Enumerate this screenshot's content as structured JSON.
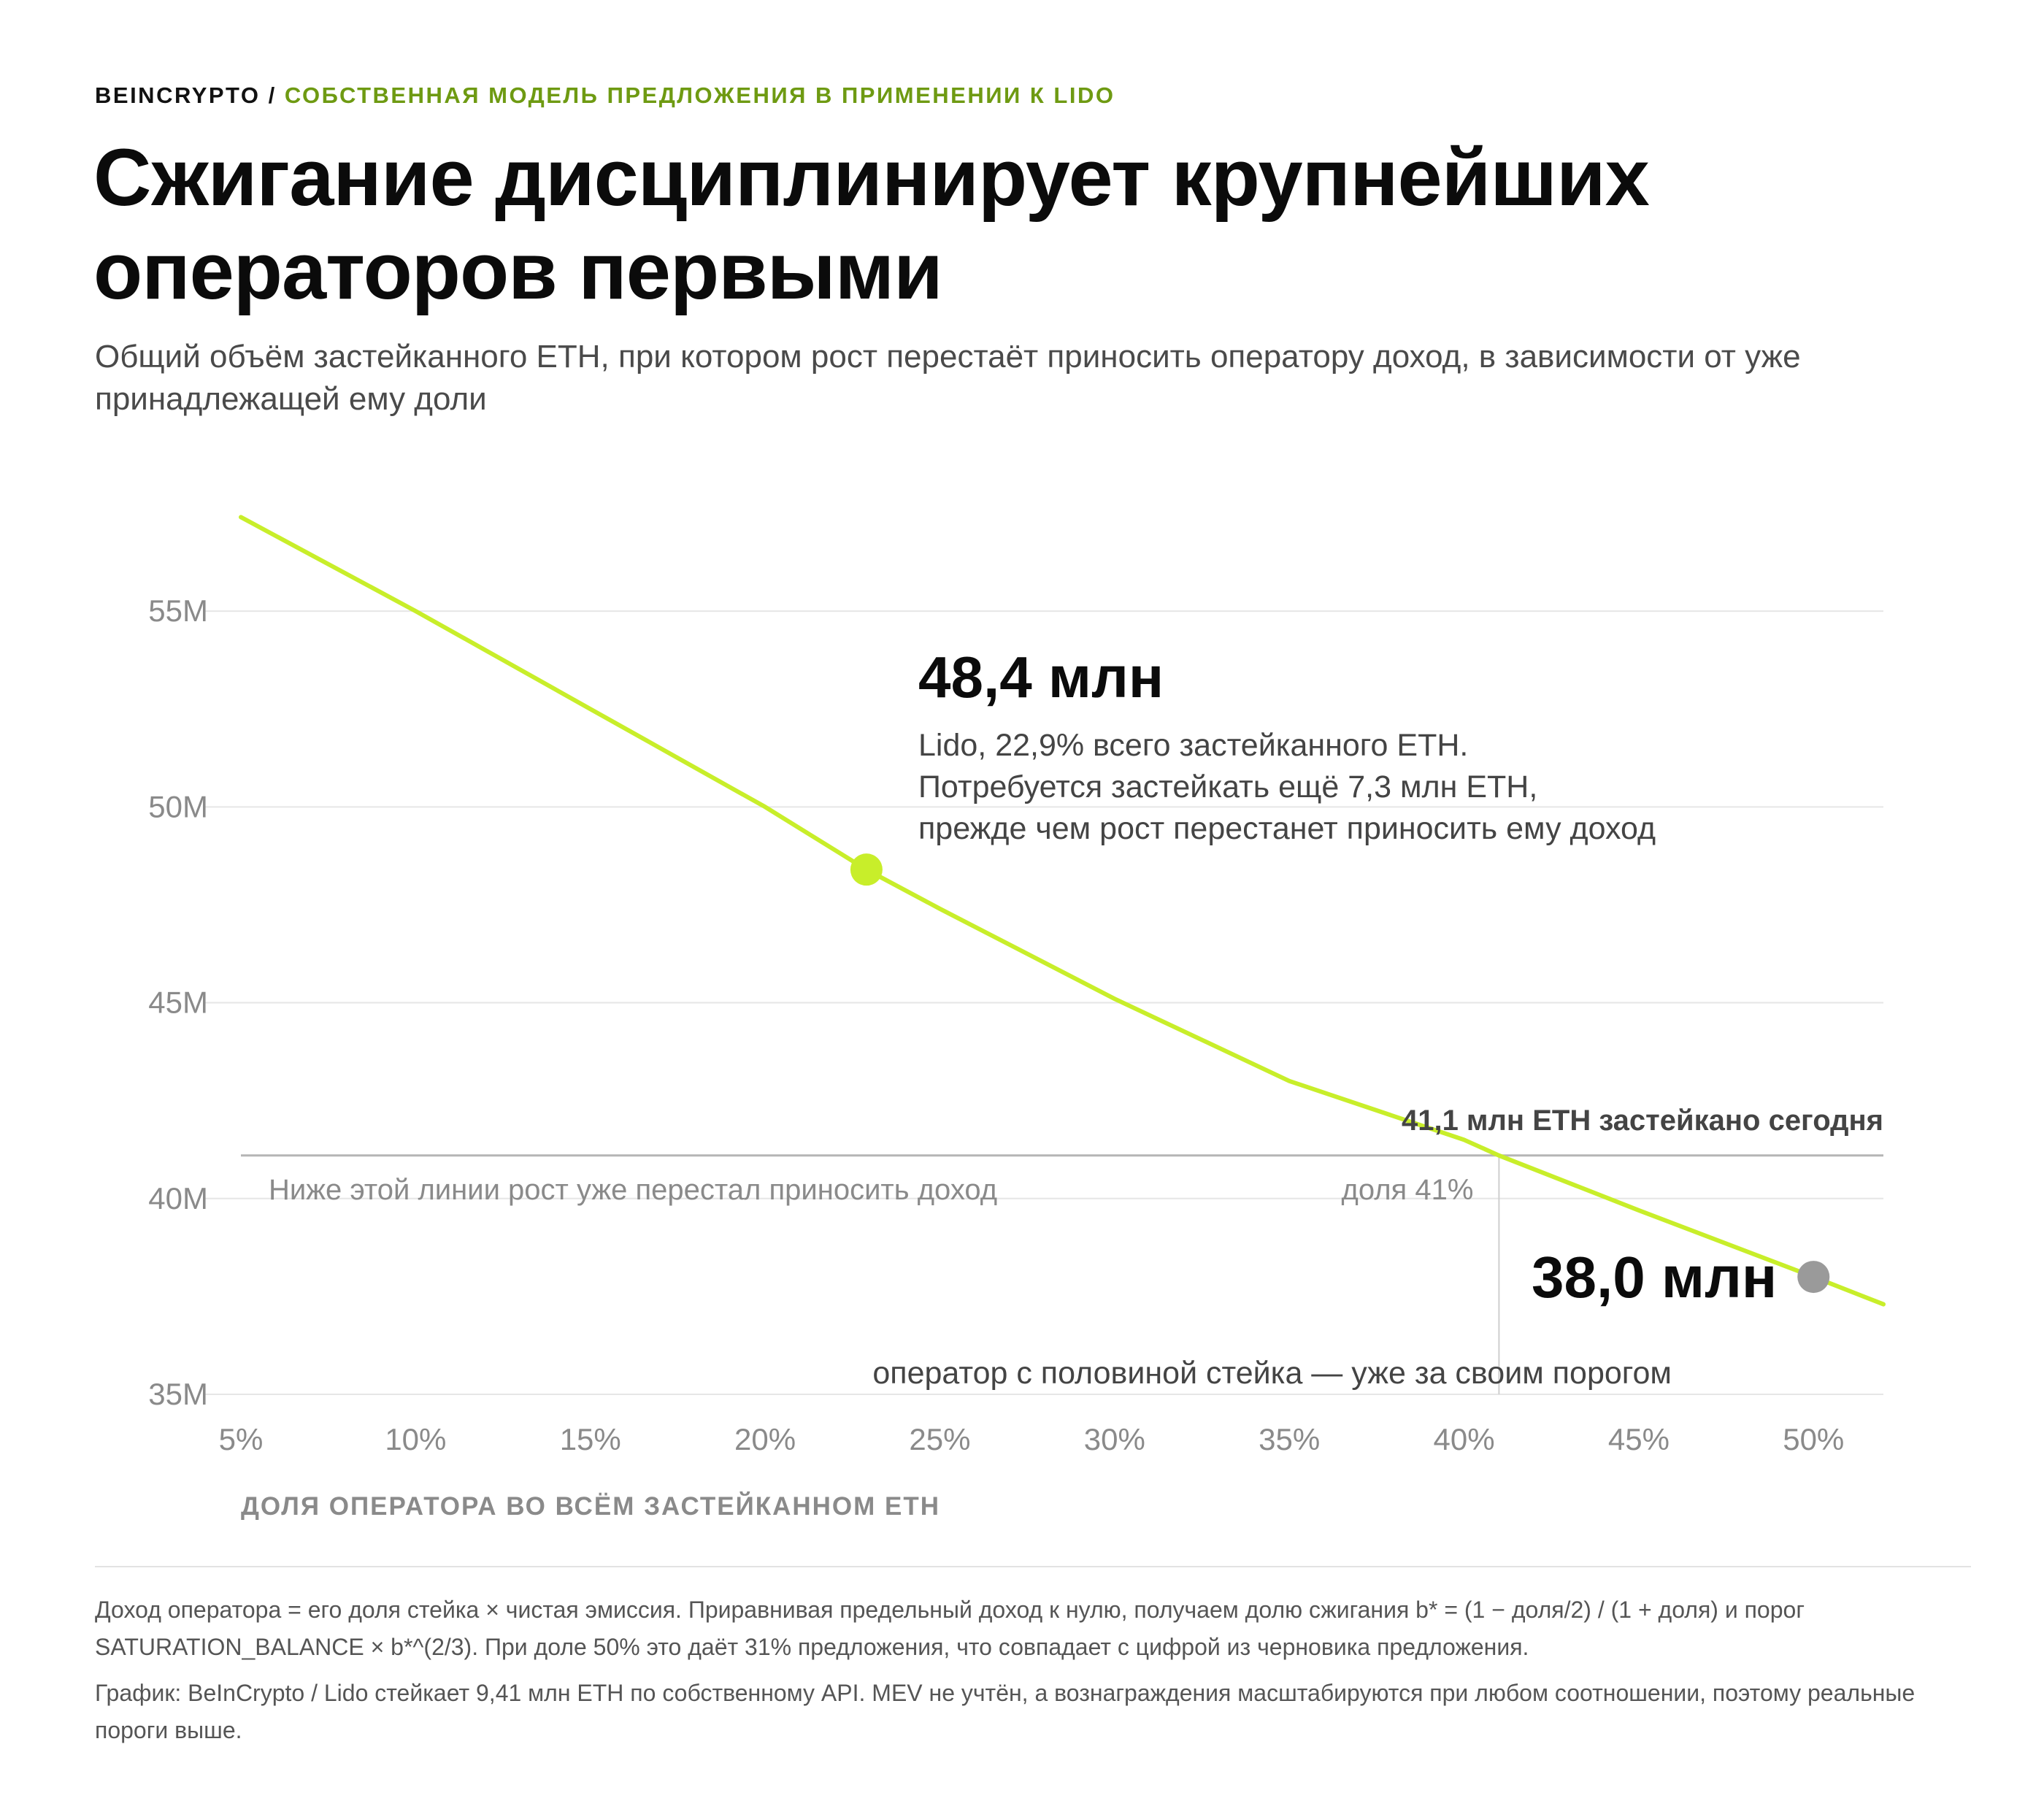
{
  "header": {
    "brand": "BEINCRYPTO",
    "separator": " / ",
    "topic": "СОБСТВЕННАЯ МОДЕЛЬ ПРЕДЛОЖЕНИЯ В ПРИМЕНЕНИИ К LIDO",
    "title": "Сжигание дисциплинирует крупнейших операторов первыми",
    "subtitle": "Общий объём застейканного ETH, при котором рост перестаёт приносить оператору доход, в зависимости от уже принадлежащей ему доли"
  },
  "colors": {
    "accent": "#c8ee2a",
    "topic": "#6e9a12",
    "grey_marker": "#9a9a9a",
    "grid": "#e6e6e6"
  },
  "chart_data": {
    "type": "line",
    "xlabel": "ДОЛЯ ОПЕРАТОРА ВО ВСЁМ ЗАСТЕЙКАННОМ ETH",
    "ylabel": "",
    "xlim": [
      5,
      52
    ],
    "ylim": [
      35,
      57.5
    ],
    "x_ticks": [
      {
        "value": 5,
        "label": "5%"
      },
      {
        "value": 10,
        "label": "10%"
      },
      {
        "value": 15,
        "label": "15%"
      },
      {
        "value": 20,
        "label": "20%"
      },
      {
        "value": 25,
        "label": "25%"
      },
      {
        "value": 30,
        "label": "30%"
      },
      {
        "value": 35,
        "label": "35%"
      },
      {
        "value": 40,
        "label": "40%"
      },
      {
        "value": 45,
        "label": "45%"
      },
      {
        "value": 50,
        "label": "50%"
      }
    ],
    "y_ticks": [
      {
        "value": 35,
        "label": "35M"
      },
      {
        "value": 40,
        "label": "40M"
      },
      {
        "value": 45,
        "label": "45M"
      },
      {
        "value": 50,
        "label": "50M"
      },
      {
        "value": 55,
        "label": "55M"
      }
    ],
    "series": [
      {
        "x": [
          5,
          10,
          15,
          20,
          22.9,
          25,
          30,
          35,
          40,
          41,
          45,
          50,
          52
        ],
        "y": [
          57.4,
          55.0,
          52.5,
          50.0,
          48.4,
          47.4,
          45.1,
          43.0,
          41.5,
          41.1,
          39.7,
          38.0,
          37.3
        ]
      }
    ],
    "reference_line": {
      "y": 41.1,
      "x_from": 5,
      "x_to": 52,
      "label": "41,1 млн ETH застейкано сегодня"
    },
    "reference_vline": {
      "x": 41,
      "label": "доля 41%"
    },
    "shaded_note": "Ниже этой линии рост уже перестал приносить доход",
    "points": [
      {
        "x": 22.9,
        "y": 48.4,
        "marker": "accent",
        "value_label": "48,4 млн",
        "note_lines": [
          "Lido, 22,9% всего застейканного ETH.",
          "Потребуется застейкать ещё 7,3 млн ETH,",
          "прежде чем рост перестанет приносить ему доход"
        ]
      },
      {
        "x": 50,
        "y": 38.0,
        "marker": "grey",
        "value_label": "38,0 млн",
        "note_lines": [
          "оператор с половиной стейка — уже за своим порогом"
        ]
      }
    ]
  },
  "footer": {
    "note1": "Доход оператора = его доля стейка × чистая эмиссия. Приравнивая предельный доход к нулю, получаем долю сжигания b* = (1 − доля/2) / (1 + доля) и порог SATURATION_BALANCE × b*^(2/3). При доле 50% это даёт 31% предложения, что совпадает с цифрой из черновика предложения.",
    "note2": "График: BeInCrypto / Lido стейкает 9,41 млн ETH по собственному API. MEV не учтён, а вознаграждения масштабируются при любом соотношении, поэтому реальные пороги выше."
  }
}
